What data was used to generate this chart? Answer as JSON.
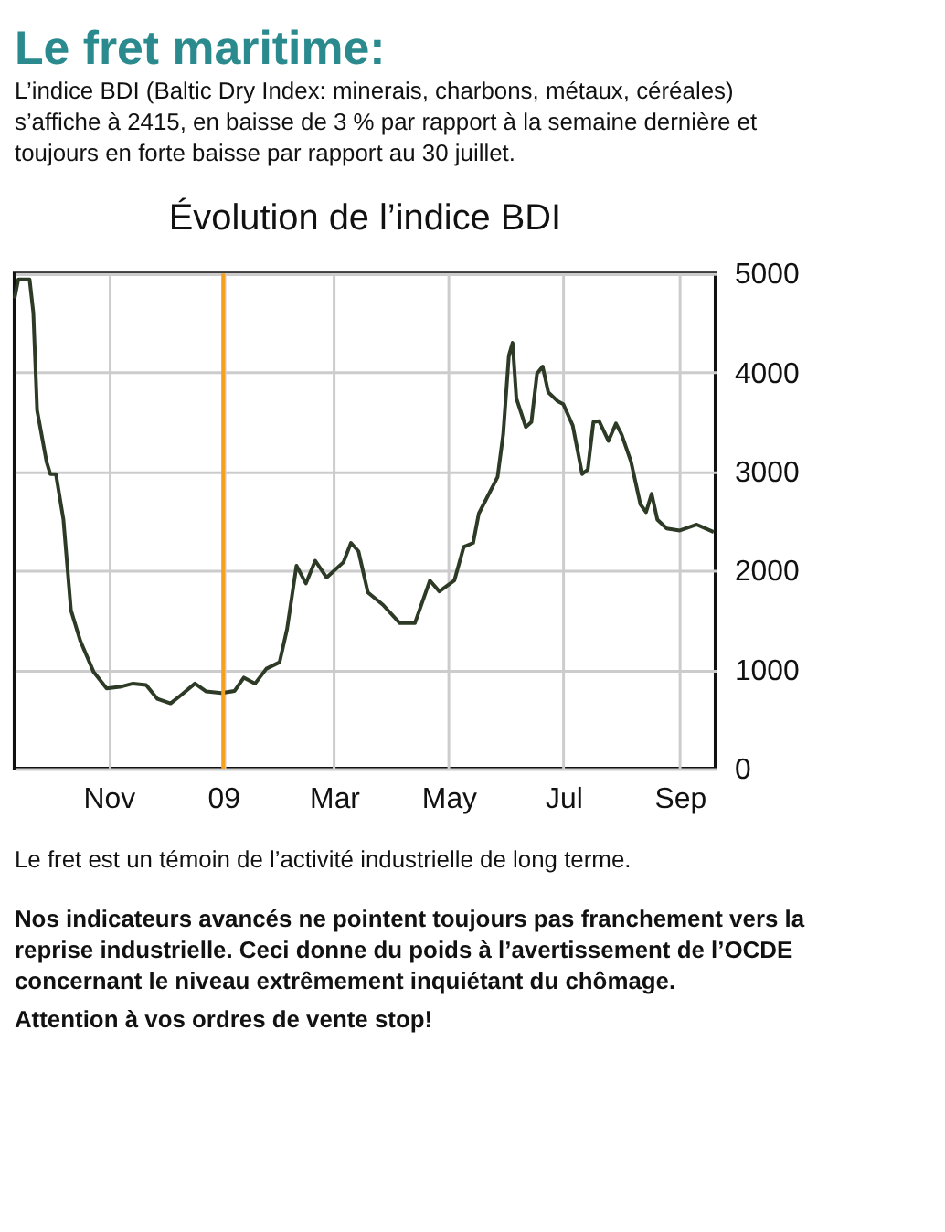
{
  "chart_data": {
    "type": "line",
    "title": "Évolution de l’indice BDI",
    "annotations": [
      "Le fret maritime:",
      "L’indice BDI (Baltic Dry Index: minerais, charbons, métaux, céréales) s’affiche à 2415, en baisse de 3 % par rapport à la semaine dernière et toujours en forte baisse par rapport au 30 juillet.",
      "Le fret est un témoin de l’activité industrielle de long terme.",
      "Nos indicateurs avancés ne pointent toujours pas franchement vers la reprise industrielle. Ceci donne du poids à l’avertissement de l’OCDE concernant le niveau extrêmement inquiétant du chômage.",
      "Attention à vos ordres de vente stop!"
    ],
    "x": [
      "2008-09-12",
      "2008-09-14",
      "2008-09-20",
      "2008-09-22",
      "2008-09-24",
      "2008-09-29",
      "2008-10-01",
      "2008-10-04",
      "2008-10-08",
      "2008-10-12",
      "2008-10-17",
      "2008-10-24",
      "2008-10-31",
      "2008-11-08",
      "2008-11-14",
      "2008-11-21",
      "2008-11-27",
      "2008-12-04",
      "2008-12-09",
      "2008-12-17",
      "2008-12-23",
      "2008-12-31",
      "2009-01-07",
      "2009-01-12",
      "2009-01-18",
      "2009-01-24",
      "2009-01-31",
      "2009-02-04",
      "2009-02-09",
      "2009-02-14",
      "2009-02-19",
      "2009-02-25",
      "2009-03-06",
      "2009-03-10",
      "2009-03-14",
      "2009-03-19",
      "2009-03-27",
      "2009-04-05",
      "2009-04-13",
      "2009-04-21",
      "2009-04-26",
      "2009-05-04",
      "2009-05-09",
      "2009-05-14",
      "2009-05-17",
      "2009-05-22",
      "2009-05-27",
      "2009-05-30",
      "2009-06-02",
      "2009-06-04",
      "2009-06-06",
      "2009-06-11",
      "2009-06-14",
      "2009-06-17",
      "2009-06-20",
      "2009-06-23",
      "2009-06-28",
      "2009-07-01",
      "2009-07-06",
      "2009-07-11",
      "2009-07-14",
      "2009-07-17",
      "2009-07-20",
      "2009-07-25",
      "2009-07-29",
      "2009-08-01",
      "2009-08-06",
      "2009-08-11",
      "2009-08-14",
      "2009-08-17",
      "2009-08-20",
      "2009-08-25",
      "2009-09-01",
      "2009-09-10",
      "2009-09-19"
    ],
    "series": [
      {
        "color": "#2d3a26",
        "values": [
          4750,
          4940,
          4940,
          4600,
          3620,
          3100,
          2975,
          2975,
          2515,
          1600,
          1290,
          980,
          810,
          830,
          860,
          845,
          705,
          660,
          735,
          860,
          780,
          765,
          785,
          920,
          860,
          1010,
          1075,
          1410,
          2050,
          1870,
          2100,
          1930,
          2085,
          2280,
          2195,
          1780,
          1655,
          1470,
          1470,
          1900,
          1790,
          1900,
          2240,
          2280,
          2575,
          2760,
          2945,
          3375,
          4170,
          4300,
          3740,
          3450,
          3500,
          3990,
          4060,
          3800,
          3710,
          3680,
          3465,
          2975,
          3020,
          3500,
          3510,
          3310,
          3485,
          3375,
          3100,
          2670,
          2590,
          2775,
          2515,
          2425,
          2405,
          2465,
          2390
        ]
      }
    ],
    "xlim": [
      "2008-09-12",
      "2009-09-20"
    ],
    "xticks": [
      {
        "value": "2008-11-01",
        "label": "Nov"
      },
      {
        "value": "2009-01-01",
        "label": "09"
      },
      {
        "value": "2009-03-01",
        "label": "Mar"
      },
      {
        "value": "2009-05-01",
        "label": "May"
      },
      {
        "value": "2009-07-01",
        "label": "Jul"
      },
      {
        "value": "2009-09-01",
        "label": "Sep"
      }
    ],
    "ylim": [
      0,
      5000
    ],
    "yticks": [
      0,
      1000,
      2000,
      3000,
      4000,
      5000
    ],
    "grid": true,
    "ref_lines": [
      {
        "axis": "x",
        "value": "2009-01-01",
        "color": "#f5a01e"
      }
    ]
  }
}
